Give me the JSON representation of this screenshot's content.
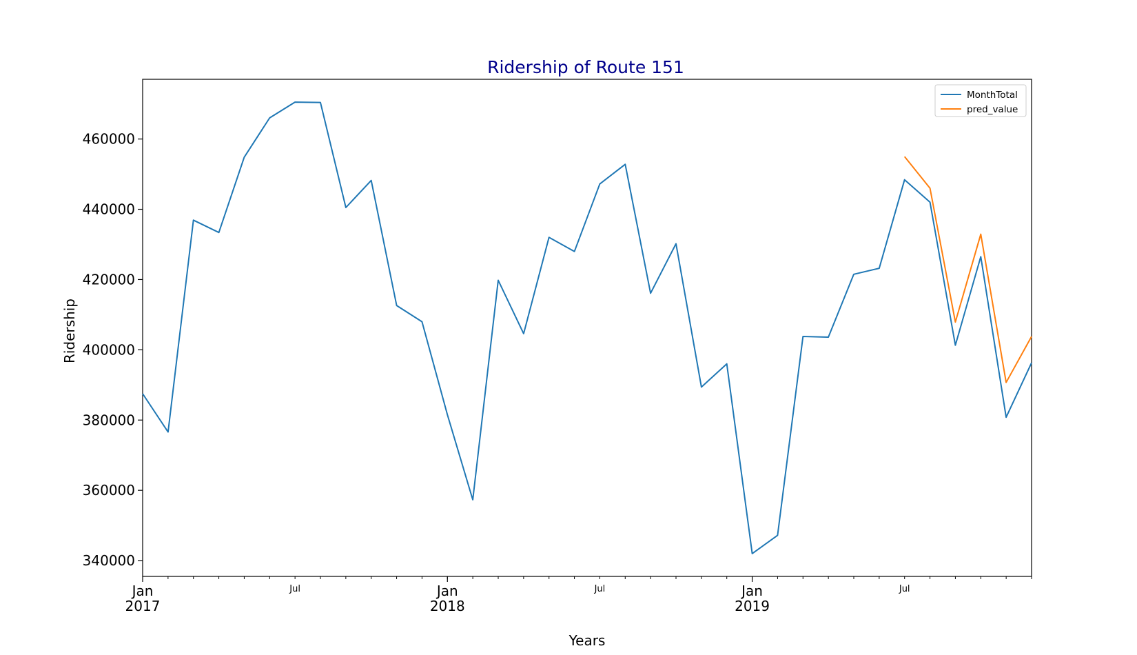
{
  "chart_data": {
    "type": "line",
    "title": "Ridership of Route 151",
    "title_color": "#00008b",
    "xlabel": "Years",
    "ylabel": "Ridership",
    "ylim": [
      335500,
      477000
    ],
    "xlim": [
      "2017-01",
      "2019-12"
    ],
    "grid": false,
    "legend_position": "top-right",
    "y_ticks": [
      340000,
      360000,
      380000,
      400000,
      420000,
      440000,
      460000
    ],
    "y_tick_labels": [
      "340000",
      "360000",
      "380000",
      "400000",
      "420000",
      "440000",
      "460000"
    ],
    "x_major_ticks": [
      {
        "date": "2017-01",
        "label": "Jan",
        "year": "2017"
      },
      {
        "date": "2018-01",
        "label": "Jan",
        "year": "2018"
      },
      {
        "date": "2019-01",
        "label": "Jan",
        "year": "2019"
      }
    ],
    "x_minor_labels": [
      {
        "date": "2017-07",
        "label": "Jul"
      },
      {
        "date": "2018-07",
        "label": "Jul"
      },
      {
        "date": "2019-07",
        "label": "Jul"
      }
    ],
    "series": [
      {
        "name": "MonthTotal",
        "color": "#1f77b4",
        "x": [
          "2017-01",
          "2017-02",
          "2017-03",
          "2017-04",
          "2017-05",
          "2017-06",
          "2017-07",
          "2017-08",
          "2017-09",
          "2017-10",
          "2017-11",
          "2017-12",
          "2018-01",
          "2018-02",
          "2018-03",
          "2018-04",
          "2018-05",
          "2018-06",
          "2018-07",
          "2018-08",
          "2018-09",
          "2018-10",
          "2018-11",
          "2018-12",
          "2019-01",
          "2019-02",
          "2019-03",
          "2019-04",
          "2019-05",
          "2019-06",
          "2019-07",
          "2019-08",
          "2019-09",
          "2019-10",
          "2019-11",
          "2019-12"
        ],
        "values": [
          387500,
          376600,
          436900,
          433400,
          454800,
          466000,
          470500,
          470400,
          440500,
          448200,
          412600,
          408000,
          381500,
          357300,
          419800,
          404600,
          432000,
          428000,
          447200,
          452800,
          416100,
          430200,
          389400,
          396000,
          342000,
          347200,
          403800,
          403600,
          421500,
          423200,
          448400,
          442000,
          401300,
          426500,
          380800,
          396300
        ]
      },
      {
        "name": "pred_value",
        "color": "#ff7f0e",
        "x": [
          "2019-07",
          "2019-08",
          "2019-09",
          "2019-10",
          "2019-11",
          "2019-12"
        ],
        "values": [
          455000,
          446000,
          407900,
          432900,
          390700,
          403800
        ]
      }
    ]
  }
}
